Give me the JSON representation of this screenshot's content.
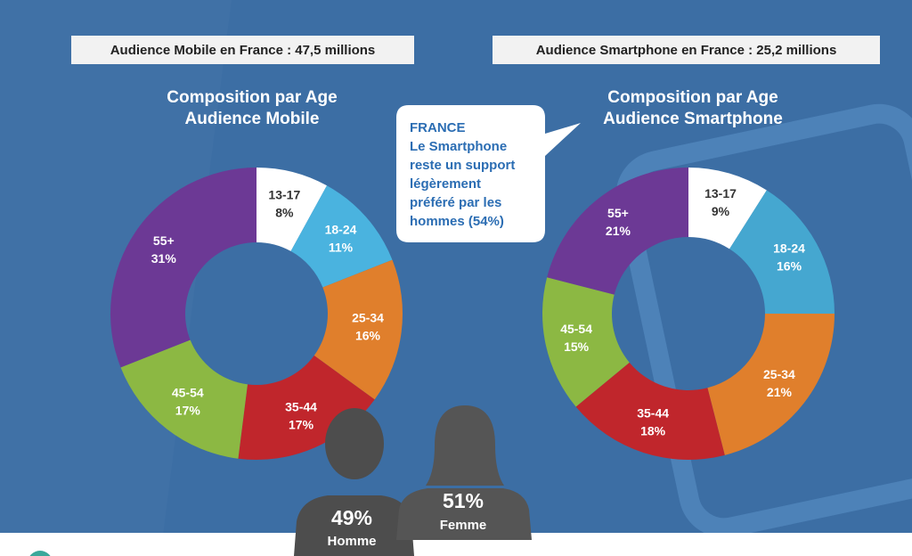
{
  "chart_data": [
    {
      "type": "donut",
      "header": "Audience Mobile en France : 47,5 millions",
      "title_lines": [
        "Composition par Age",
        "Audience Mobile"
      ],
      "categories": [
        "13-17",
        "18-24",
        "25-34",
        "35-44",
        "45-54",
        "55+"
      ],
      "values": [
        8,
        11,
        16,
        17,
        17,
        31
      ],
      "value_labels": [
        "8%",
        "11%",
        "16%",
        "17%",
        "17%",
        "31%"
      ],
      "colors": [
        "#ffffff",
        "#4ab3df",
        "#e07f2c",
        "#c0262c",
        "#8cb843",
        "#6c3995"
      ]
    },
    {
      "type": "donut",
      "header": "Audience Smartphone en France : 25,2 millions",
      "title_lines": [
        "Composition par Age",
        "Audience Smartphone"
      ],
      "categories": [
        "13-17",
        "18-24",
        "25-34",
        "35-44",
        "45-54",
        "55+"
      ],
      "values": [
        9,
        16,
        21,
        18,
        15,
        21
      ],
      "value_labels": [
        "9%",
        "16%",
        "21%",
        "18%",
        "15%",
        "21%"
      ],
      "colors": [
        "#ffffff",
        "#45a7d0",
        "#e07f2c",
        "#c0262c",
        "#8cb843",
        "#6c3995"
      ]
    }
  ],
  "callout": {
    "lines": [
      "FRANCE",
      "Le Smartphone",
      "reste un support",
      "légèrement",
      "préféré par les",
      "hommes (54%)"
    ]
  },
  "gender": {
    "labels": [
      "49%",
      "51%"
    ],
    "names": [
      "Homme",
      "Femme"
    ]
  }
}
